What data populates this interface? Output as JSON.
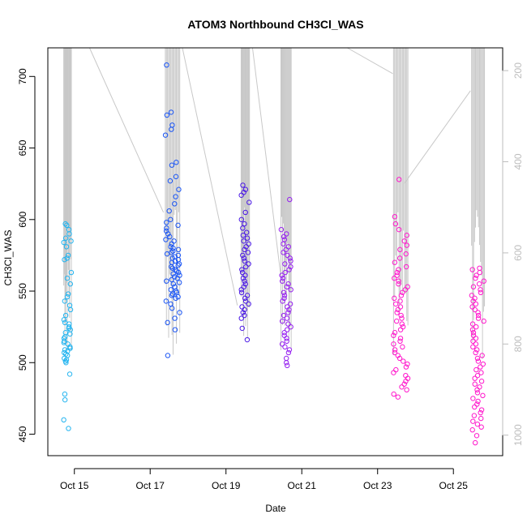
{
  "chart_data": {
    "type": "scatter",
    "title": "ATOM3 Northbound CH3Cl_WAS",
    "xlabel": "Date",
    "ylabel": "CH3Cl_WAS",
    "x_tick_labels": [
      "Oct 15",
      "Oct 17",
      "Oct 19",
      "Oct 21",
      "Oct 23",
      "Oct 25"
    ],
    "x_tick_days": [
      15,
      17,
      19,
      21,
      23,
      25
    ],
    "xlim_days": [
      14.3,
      26.3
    ],
    "ylim": [
      435,
      720
    ],
    "y_ticks": [
      450,
      500,
      550,
      600,
      650,
      700
    ],
    "right_axis": {
      "reversed": true,
      "range": [
        1045,
        150
      ],
      "ticks": [
        200,
        400,
        600,
        800,
        1000
      ],
      "color": "#bdbdbd",
      "series": "pressure profile (grey lines)"
    },
    "grid": false,
    "legend": "none",
    "colors": {
      "points_start": "#22b4f0",
      "points_mid1": "#1a55f5",
      "points_mid2": "#4a18e6",
      "points_mid3": "#9620f0",
      "points_end": "#ff18cc",
      "profile_line": "#c8c8c8"
    },
    "clusters": [
      {
        "day_start": 14.72,
        "day_end": 14.92,
        "color": "#22b4f0",
        "values": [
          597,
          596,
          593,
          590,
          587,
          585,
          584,
          581,
          575,
          573,
          572,
          563,
          559,
          555,
          548,
          546,
          543,
          540,
          537,
          533,
          530,
          528,
          527,
          525,
          524,
          523,
          521,
          520,
          518,
          517,
          515,
          514,
          513,
          511,
          510,
          509,
          508,
          507,
          506,
          505,
          503,
          502,
          501,
          500,
          492,
          478,
          474,
          460,
          454
        ]
      },
      {
        "day_start": 17.4,
        "day_end": 17.78,
        "color": "#1a55f5",
        "values": [
          708,
          675,
          673,
          666,
          663,
          659,
          640,
          638,
          630,
          627,
          621,
          616,
          611,
          606,
          600,
          598,
          596,
          594,
          592,
          590,
          588,
          586,
          585,
          583,
          581,
          580,
          579,
          578,
          577,
          576,
          575,
          574,
          573,
          572,
          571,
          570,
          569,
          568,
          567,
          566,
          565,
          564,
          563,
          562,
          561,
          560,
          559,
          558,
          557,
          556,
          555,
          553,
          551,
          550,
          549,
          548,
          547,
          546,
          545,
          543,
          541,
          538,
          535,
          531,
          528,
          523,
          505
        ]
      },
      {
        "day_start": 19.4,
        "day_end": 19.62,
        "color": "#4a18e6",
        "values": [
          624,
          621,
          619,
          617,
          612,
          605,
          600,
          597,
          594,
          591,
          589,
          587,
          585,
          583,
          581,
          579,
          577,
          575,
          573,
          571,
          569,
          567,
          565,
          563,
          561,
          559,
          557,
          555,
          553,
          551,
          549,
          547,
          545,
          543,
          541,
          539,
          537,
          535,
          533,
          531,
          524,
          516
        ]
      },
      {
        "day_start": 20.45,
        "day_end": 20.72,
        "color": "#9620f0",
        "values": [
          614,
          593,
          590,
          588,
          586,
          583,
          581,
          579,
          577,
          575,
          573,
          571,
          569,
          567,
          565,
          563,
          561,
          559,
          557,
          555,
          553,
          551,
          549,
          547,
          545,
          543,
          541,
          539,
          537,
          535,
          533,
          531,
          529,
          527,
          525,
          523,
          521,
          519,
          517,
          515,
          513,
          511,
          509,
          507,
          503,
          500,
          498
        ]
      },
      {
        "day_start": 23.42,
        "day_end": 23.8,
        "color": "#ff18cc",
        "values": [
          628,
          602,
          597,
          593,
          589,
          585,
          582,
          579,
          576,
          573,
          570,
          567,
          565,
          563,
          561,
          559,
          557,
          555,
          553,
          551,
          549,
          547,
          545,
          543,
          541,
          539,
          537,
          535,
          533,
          531,
          529,
          527,
          525,
          523,
          521,
          519,
          517,
          515,
          513,
          511,
          509,
          507,
          505,
          503,
          501,
          499,
          497,
          495,
          493,
          491,
          489,
          487,
          485,
          483,
          481,
          478,
          476
        ]
      },
      {
        "day_start": 25.48,
        "day_end": 25.82,
        "color": "#ff18cc",
        "values": [
          566,
          565,
          563,
          561,
          559,
          557,
          555,
          553,
          551,
          549,
          547,
          545,
          543,
          541,
          539,
          537,
          535,
          533,
          531,
          529,
          527,
          525,
          523,
          521,
          519,
          517,
          515,
          513,
          511,
          509,
          507,
          505,
          503,
          501,
          499,
          497,
          495,
          493,
          491,
          489,
          487,
          485,
          483,
          481,
          479,
          477,
          475,
          473,
          471,
          469,
          467,
          465,
          463,
          461,
          459,
          457,
          455,
          453,
          449,
          444
        ]
      }
    ]
  }
}
